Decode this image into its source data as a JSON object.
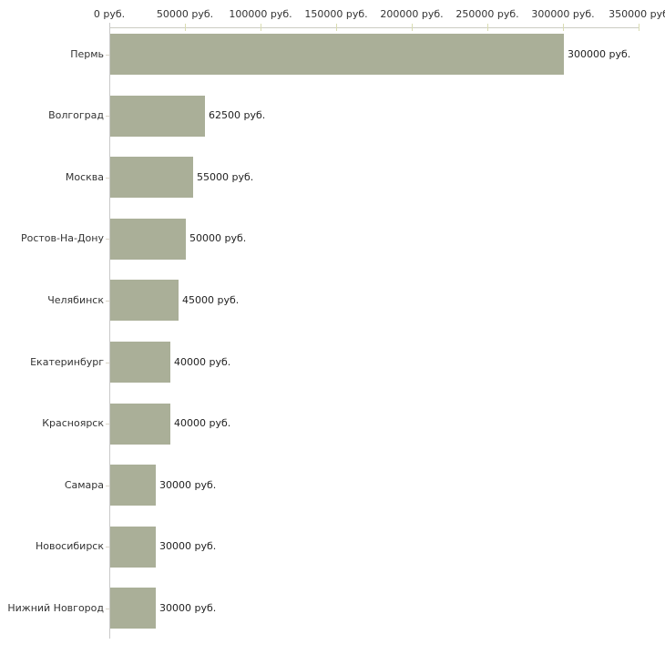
{
  "chart_data": {
    "type": "bar",
    "orientation": "horizontal",
    "title": "",
    "categories": [
      "Пермь",
      "Волгоград",
      "Москва",
      "Ростов-На-Дону",
      "Челябинск",
      "Екатеринбург",
      "Красноярск",
      "Самара",
      "Новосибирск",
      "Нижний Новгород"
    ],
    "values": [
      300000,
      62500,
      55000,
      50000,
      45000,
      40000,
      40000,
      30000,
      30000,
      30000
    ],
    "bar_labels": [
      "300000 руб.",
      "62500 руб.",
      "55000 руб.",
      "50000 руб.",
      "45000 руб.",
      "40000 руб.",
      "40000 руб.",
      "30000 руб.",
      "30000 руб.",
      "30000 руб."
    ],
    "x_axis": {
      "position": "top",
      "tick_labels": [
        "0 руб.",
        "50000 руб.",
        "100000 руб.",
        "150000 руб.",
        "200000 руб.",
        "250000 руб.",
        "300000 руб.",
        "350000 руб"
      ],
      "tick_values": [
        0,
        50000,
        100000,
        150000,
        200000,
        250000,
        300000,
        350000
      ],
      "range": [
        0,
        350000
      ]
    },
    "legend": null,
    "grid": false,
    "colors": {
      "background": "#ffffff",
      "bar": "#aaaf98",
      "x_axis_line": "#cbccc2",
      "y_axis_line": "#c9c9c9",
      "axis_tick": "#d9dcb2",
      "category_tick": "#d9d4c6",
      "category_text": "#333333",
      "value_text": "#222222",
      "tick_text": "#333333"
    }
  }
}
